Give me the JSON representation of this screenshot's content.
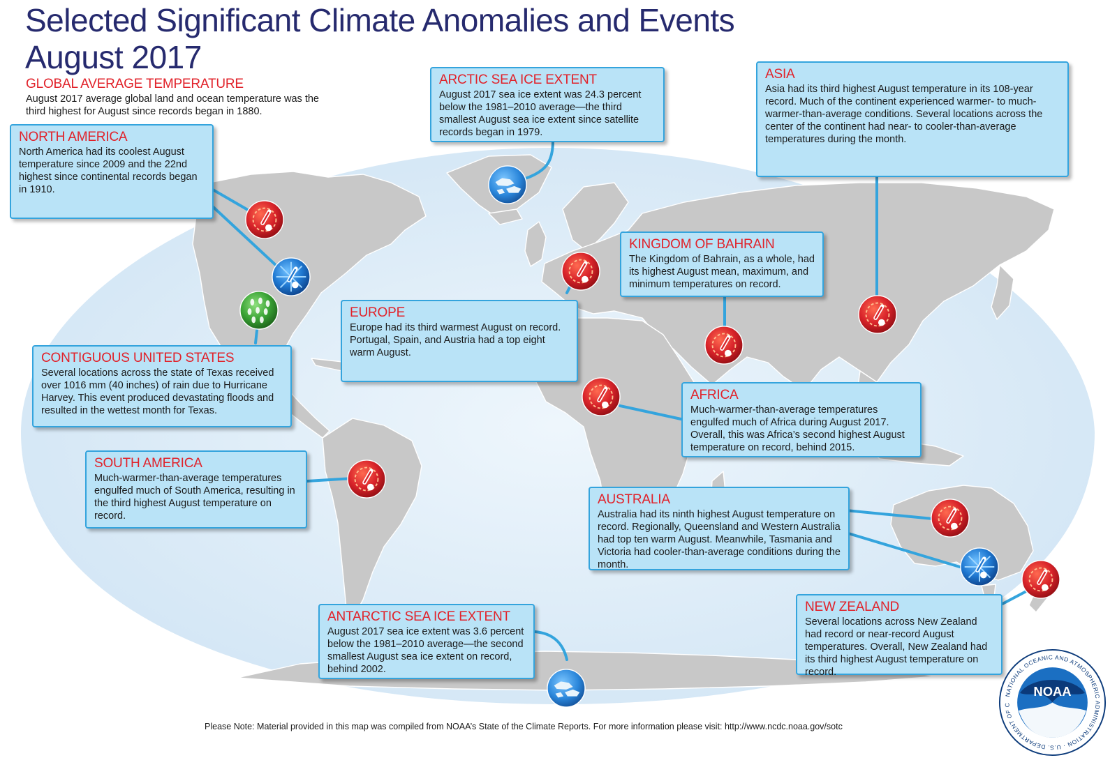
{
  "title": {
    "line1": "Selected Significant Climate Anomalies and Events",
    "line2": "August 2017"
  },
  "global": {
    "heading": "GLOBAL AVERAGE TEMPERATURE",
    "text": "August 2017 average global land and ocean temperature was the third highest for August since records began in 1880."
  },
  "callouts": {
    "north_america": {
      "heading": "NORTH AMERICA",
      "text": "North America had its coolest August temperature since 2009 and the 22nd highest since continental records began in 1910."
    },
    "arctic": {
      "heading": "ARCTIC SEA ICE EXTENT",
      "text": "August 2017 sea ice extent was 24.3 percent below the 1981–2010 average—the third smallest August sea ice extent since satellite records began in 1979."
    },
    "asia": {
      "heading": "ASIA",
      "text": "Asia had its third highest August temperature in its 108-year record. Much of the continent experienced warmer- to much-warmer-than-average conditions. Several locations across the center of the continent had near- to cooler-than-average temperatures during the month."
    },
    "bahrain": {
      "heading": "KINGDOM OF BAHRAIN",
      "text": "The Kingdom of Bahrain, as a whole, had its highest August mean, maximum, and minimum temperatures on record."
    },
    "europe": {
      "heading": "EUROPE",
      "text": "Europe had its third warmest August on record. Portugal, Spain, and Austria had a top eight warm August."
    },
    "contiguous_us": {
      "heading": "CONTIGUOUS UNITED STATES",
      "text": "Several locations across the state of Texas received over 1016 mm (40 inches) of rain due to Hurricane Harvey. This event produced devastating floods and resulted in the wettest month for Texas."
    },
    "africa": {
      "heading": "AFRICA",
      "text": "Much-warmer-than-average temperatures engulfed much of Africa during August 2017. Overall, this was Africa’s second highest August temperature on record, behind 2015."
    },
    "south_america": {
      "heading": "SOUTH AMERICA",
      "text": "Much-warmer-than-average temperatures engulfed much of South America, resulting in the third highest August temperature on record."
    },
    "australia": {
      "heading": "AUSTRALIA",
      "text": "Australia had its ninth highest August temperature on record. Regionally, Queensland and Western Australia had top ten warm August. Meanwhile, Tasmania and Victoria had cooler-than-average conditions during the month."
    },
    "antarctic": {
      "heading": "ANTARCTIC SEA ICE EXTENT",
      "text": "August 2017 sea ice extent was 3.6 percent below the 1981–2010 average—the second smallest August sea ice extent on record, behind 2002."
    },
    "new_zealand": {
      "heading": "NEW ZEALAND",
      "text": "Several locations across New Zealand had record or near-record August temperatures. Overall, New Zealand had its third highest August temperature on record."
    }
  },
  "footer": {
    "note": "Please Note: Material provided in this map was compiled from NOAA’s State of the Climate Reports. For more information please visit: http://www.ncdc.noaa.gov/sotc"
  },
  "logo": {
    "name": "NOAA",
    "ring_text": "NATIONAL OCEANIC AND ATMOSPHERIC ADMINISTRATION · U.S. DEPARTMENT OF COMMERCE"
  },
  "colors": {
    "warm": "#d8232a",
    "cool": "#1f78d1",
    "wet": "#3aa335",
    "box_fill": "#b9e3f7",
    "box_border": "#34a4dd",
    "heading": "#e1222a",
    "title": "#262a6e",
    "ocean": "#dbeaf6",
    "land": "#c8c8c8"
  },
  "icons": {
    "warm": "thermometer-sun-icon",
    "cool": "thermometer-snowflake-icon",
    "wet": "raindrops-icon",
    "ice": "sea-ice-icon"
  }
}
